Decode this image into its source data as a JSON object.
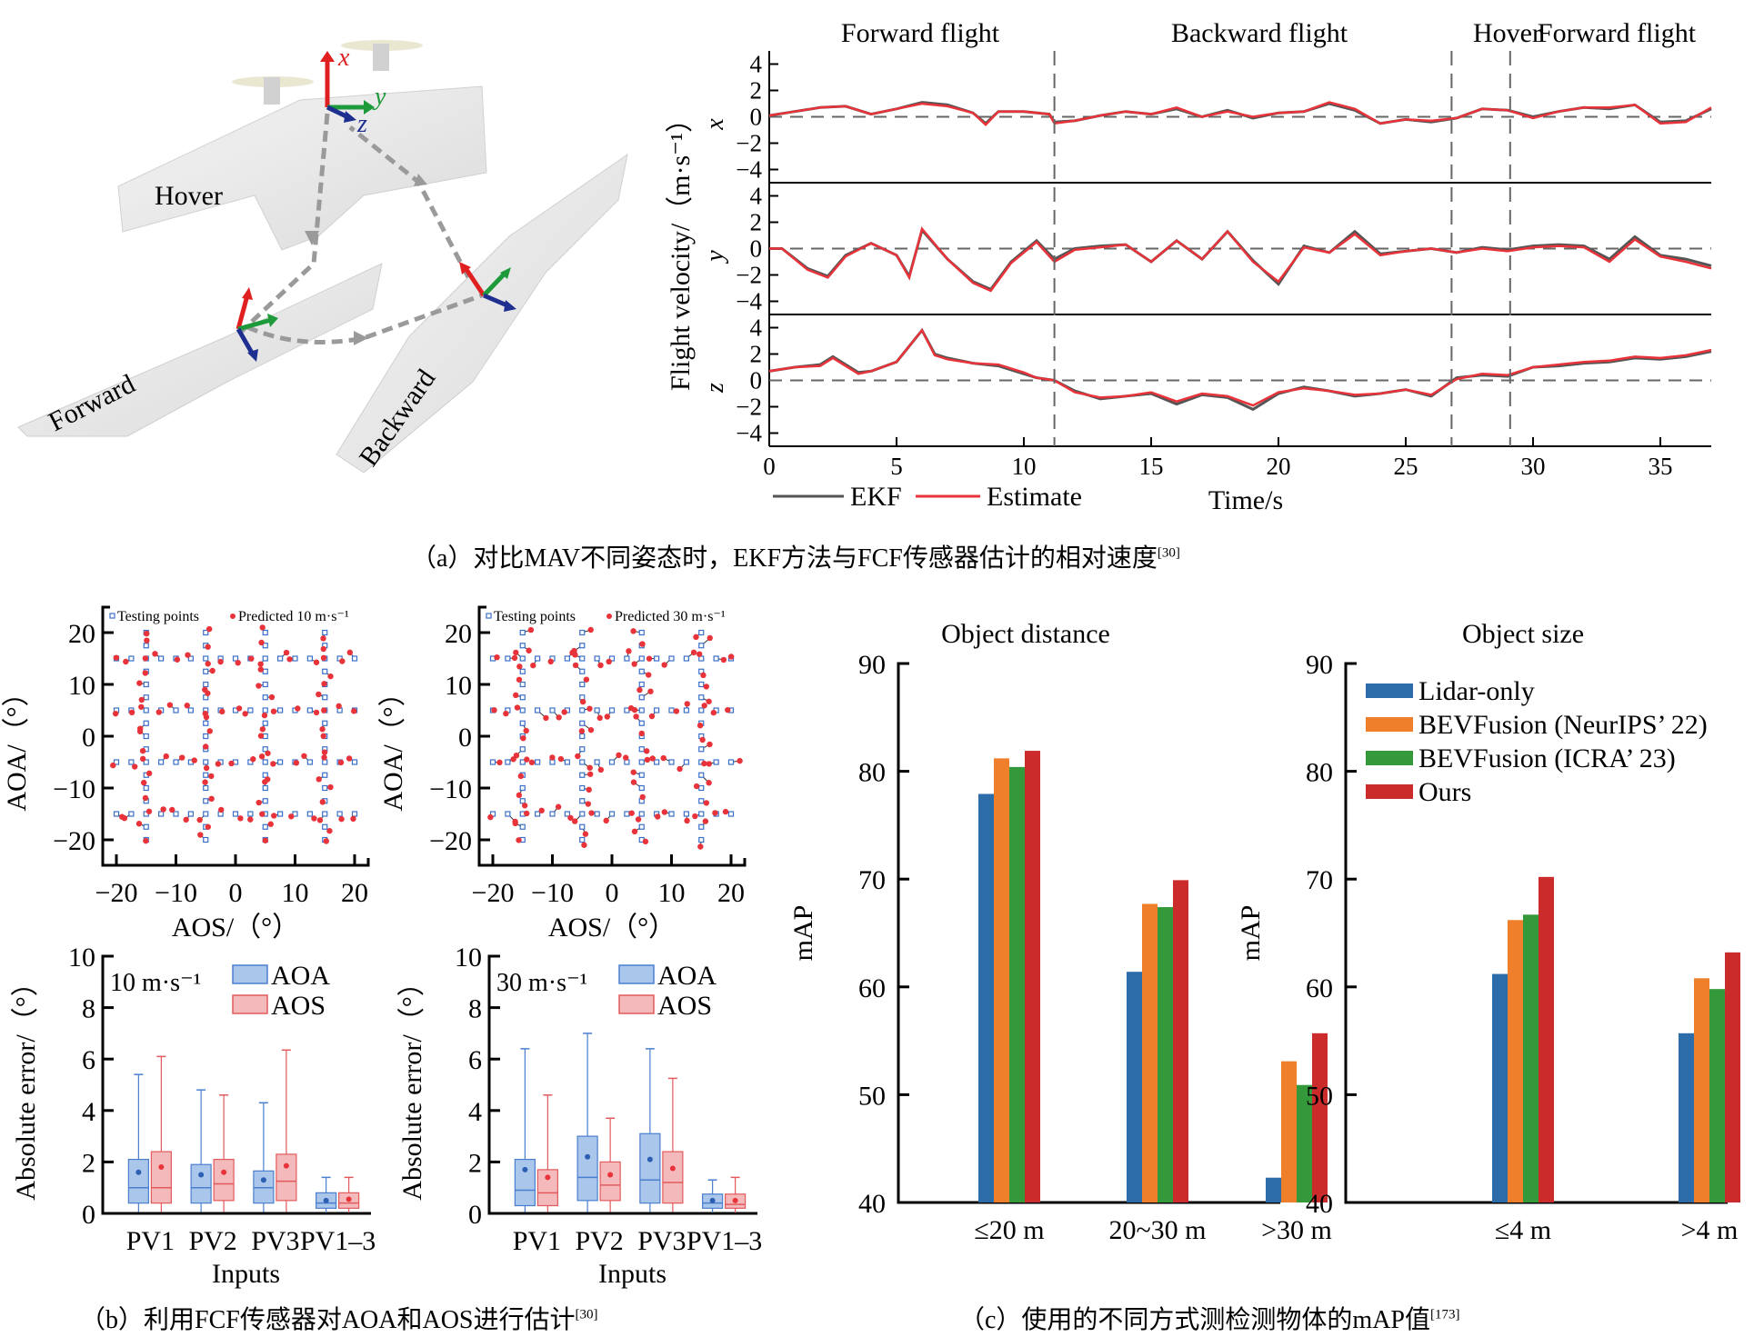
{
  "panel_a": {
    "caption": "（a）对比MAV不同姿态时，EKF方法与FCF传感器估计的相对速度",
    "caption_ref": "[30]",
    "illustration": {
      "labels": [
        "Hover",
        "Forward",
        "Backward"
      ],
      "axis_labels": {
        "x": "x",
        "y": "y",
        "z": "z"
      },
      "axis_colors": {
        "x": "#e02020",
        "y": "#1e9a3a",
        "z": "#1f2f8f"
      }
    }
  },
  "panel_b": {
    "caption": "（b）利用FCF传感器对AOA和AOS进行估计",
    "caption_ref": "[30]"
  },
  "panel_c": {
    "caption": "（c）使用的不同方式测检测物体的mAP值",
    "caption_ref": "[173]"
  },
  "chart_data": [
    {
      "id": "velocity",
      "type": "line",
      "ylabel": "Flight velocity/（m·s⁻¹）",
      "xlabel": "Time/s",
      "xlim": [
        0,
        37
      ],
      "xticks": [
        0,
        5,
        10,
        15,
        20,
        25,
        30,
        35
      ],
      "phases": [
        {
          "label": "Forward flight",
          "start": 0,
          "end": 11.2
        },
        {
          "label": "Backward flight",
          "start": 11.2,
          "end": 26.8
        },
        {
          "label": "Hover",
          "start": 26.8,
          "end": 29.1
        },
        {
          "label": "Forward flight",
          "start": 29.1,
          "end": 37
        }
      ],
      "phase_boundaries": [
        11.2,
        26.8,
        29.1
      ],
      "legend": [
        {
          "name": "EKF",
          "color": "#555555"
        },
        {
          "name": "Estimate",
          "color": "#e8333a"
        }
      ],
      "subplots": [
        {
          "axis": "x",
          "ylim": [
            -5,
            5
          ],
          "yticks": [
            4,
            2,
            0,
            -2,
            -4
          ],
          "t": [
            0,
            1,
            2,
            3,
            4,
            5,
            6,
            7,
            8,
            8.5,
            9,
            10,
            11,
            11.2,
            12,
            13,
            14,
            15,
            16,
            17,
            18,
            19,
            20,
            21,
            22,
            23,
            24,
            25,
            26,
            27,
            28,
            29,
            30,
            31,
            32,
            33,
            34,
            35,
            36,
            37
          ],
          "ekf": [
            0.1,
            0.4,
            0.7,
            0.8,
            0.2,
            0.6,
            1.1,
            0.9,
            0.3,
            -0.5,
            0.4,
            0.4,
            0.2,
            -0.4,
            -0.3,
            0.1,
            0.4,
            0.2,
            0.6,
            0.0,
            0.5,
            -0.1,
            0.3,
            0.4,
            1.0,
            0.5,
            -0.5,
            -0.2,
            -0.4,
            -0.1,
            0.6,
            0.5,
            0.0,
            0.4,
            0.7,
            0.6,
            0.9,
            -0.4,
            -0.3,
            0.6
          ],
          "estimate": [
            0.1,
            0.4,
            0.7,
            0.8,
            0.2,
            0.6,
            1.0,
            0.8,
            0.3,
            -0.6,
            0.4,
            0.4,
            0.2,
            -0.5,
            -0.3,
            0.1,
            0.4,
            0.2,
            0.7,
            0.0,
            0.4,
            0.0,
            0.3,
            0.4,
            1.1,
            0.6,
            -0.5,
            -0.2,
            -0.3,
            -0.1,
            0.6,
            0.5,
            -0.1,
            0.4,
            0.7,
            0.7,
            0.9,
            -0.5,
            -0.4,
            0.7
          ]
        },
        {
          "axis": "y",
          "ylim": [
            -5,
            5
          ],
          "yticks": [
            4,
            2,
            0,
            -2,
            -4
          ],
          "t": [
            0,
            0.5,
            1.5,
            2.3,
            3,
            4,
            5,
            5.5,
            6,
            7,
            8,
            8.7,
            9.5,
            10.5,
            11.2,
            12,
            13,
            14,
            15,
            16,
            17,
            18,
            19,
            20,
            21,
            22,
            23,
            24,
            25,
            26,
            27,
            28,
            29,
            30,
            31,
            32,
            33,
            34,
            35,
            36,
            37
          ],
          "ekf": [
            0,
            0,
            -1.5,
            -2.1,
            -0.5,
            0.4,
            -0.5,
            -2.1,
            1.4,
            -0.8,
            -2.5,
            -3.1,
            -1.0,
            0.6,
            -0.8,
            0.0,
            0.2,
            0.3,
            -1.0,
            0.6,
            -0.8,
            1.3,
            -0.9,
            -2.7,
            0.2,
            -0.3,
            1.3,
            -0.4,
            -0.2,
            0,
            -0.3,
            0.1,
            -0.1,
            0.2,
            0.3,
            0.2,
            -0.8,
            0.9,
            -0.5,
            -0.8,
            -1.3
          ],
          "estimate": [
            0,
            0,
            -1.6,
            -2.2,
            -0.6,
            0.4,
            -0.5,
            -2.2,
            1.5,
            -0.8,
            -2.6,
            -3.2,
            -1.1,
            0.5,
            -1.0,
            -0.1,
            0.1,
            0.3,
            -1.0,
            0.6,
            -0.8,
            1.3,
            -1.0,
            -2.5,
            0.1,
            -0.3,
            1.1,
            -0.5,
            -0.2,
            0,
            -0.3,
            0,
            -0.2,
            0.1,
            0.2,
            0.1,
            -1.0,
            0.7,
            -0.6,
            -1.0,
            -1.5
          ]
        },
        {
          "axis": "z",
          "ylim": [
            -5,
            5
          ],
          "yticks": [
            4,
            2,
            0,
            -2,
            -4
          ],
          "t": [
            0,
            1,
            2,
            2.5,
            3.5,
            4,
            5,
            6,
            6.5,
            7,
            8,
            9,
            10,
            10.5,
            11.2,
            12,
            13,
            14,
            15,
            16,
            17,
            18,
            19,
            20,
            21,
            22,
            23,
            24,
            25,
            26,
            27,
            28,
            29,
            30,
            31,
            32,
            33,
            34,
            35,
            36,
            37
          ],
          "ekf": [
            0.7,
            1.0,
            1.2,
            1.8,
            0.6,
            0.7,
            1.4,
            3.8,
            2.0,
            1.7,
            1.3,
            1.1,
            0.5,
            0.2,
            0.0,
            -0.8,
            -1.4,
            -1.2,
            -1.0,
            -1.8,
            -1.1,
            -1.3,
            -2.2,
            -1.0,
            -0.5,
            -0.8,
            -1.2,
            -1.0,
            -0.7,
            -1.2,
            0.2,
            0.4,
            0.3,
            1.0,
            1.1,
            1.3,
            1.4,
            1.7,
            1.6,
            1.8,
            2.2
          ],
          "estimate": [
            0.7,
            1.0,
            1.1,
            1.7,
            0.5,
            0.7,
            1.4,
            3.8,
            1.9,
            1.6,
            1.3,
            1.2,
            0.6,
            0.2,
            0.0,
            -0.9,
            -1.3,
            -1.2,
            -0.9,
            -1.6,
            -1.0,
            -1.2,
            -1.9,
            -0.9,
            -0.6,
            -0.8,
            -1.1,
            -1.0,
            -0.7,
            -1.1,
            0.1,
            0.5,
            0.4,
            1.0,
            1.2,
            1.4,
            1.5,
            1.8,
            1.7,
            1.9,
            2.3
          ]
        }
      ]
    },
    {
      "id": "aoa_aos_10",
      "type": "scatter",
      "xlabel": "AOS/（°）",
      "ylabel": "AOA/（°）",
      "xlim": [
        -23,
        23
      ],
      "ylim": [
        -21,
        24
      ],
      "xticks": [
        -20,
        -10,
        0,
        10,
        20
      ],
      "yticks": [
        20,
        10,
        0,
        -10,
        -20
      ],
      "legend": [
        {
          "name": "Testing points",
          "color": "#3a6fc9"
        },
        {
          "name": "Predicted 10 m·s⁻¹",
          "color": "#e8333a"
        }
      ],
      "grid_lines_aoa": [
        15,
        5,
        -5,
        -15
      ],
      "grid_lines_aos": [
        -15,
        -5,
        5,
        15
      ],
      "prediction_error_scale": 1.2,
      "seed": 7
    },
    {
      "id": "aoa_aos_30",
      "type": "scatter",
      "xlabel": "AOS/（°）",
      "ylabel": "AOA/（°）",
      "xlim": [
        -23,
        23
      ],
      "ylim": [
        -21,
        24
      ],
      "xticks": [
        -20,
        -10,
        0,
        10,
        20
      ],
      "yticks": [
        20,
        10,
        0,
        -10,
        -20
      ],
      "legend": [
        {
          "name": "Testing points",
          "color": "#3a6fc9"
        },
        {
          "name": "Predicted 30 m·s⁻¹",
          "color": "#e8333a"
        }
      ],
      "grid_lines_aoa": [
        15,
        5,
        -5,
        -15
      ],
      "grid_lines_aos": [
        -15,
        -5,
        5,
        15
      ],
      "prediction_error_scale": 1.5,
      "seed": 13
    },
    {
      "id": "abs_error_10",
      "type": "box",
      "annotation": "10 m·s⁻¹",
      "xlabel": "Inputs",
      "ylabel": "Absolute error/（°）",
      "ylim": [
        0,
        10
      ],
      "yticks": [
        0,
        2,
        4,
        6,
        8,
        10
      ],
      "categories": [
        "PV1",
        "PV2",
        "PV3",
        "PV1–3"
      ],
      "legend": [
        {
          "name": "AOA",
          "fill": "#aac6ea",
          "stroke": "#4a7fcf"
        },
        {
          "name": "AOS",
          "fill": "#f4b9ba",
          "stroke": "#e25a5c"
        }
      ],
      "series": [
        {
          "name": "AOA",
          "boxes": [
            {
              "min": 0.05,
              "q1": 0.4,
              "median": 1.0,
              "q3": 2.1,
              "max": 5.4,
              "mean": 1.6
            },
            {
              "min": 0.05,
              "q1": 0.4,
              "median": 1.0,
              "q3": 1.9,
              "max": 4.8,
              "mean": 1.5
            },
            {
              "min": 0.05,
              "q1": 0.4,
              "median": 1.0,
              "q3": 1.65,
              "max": 4.3,
              "mean": 1.3
            },
            {
              "min": 0.02,
              "q1": 0.2,
              "median": 0.4,
              "q3": 0.8,
              "max": 1.4,
              "mean": 0.5
            }
          ]
        },
        {
          "name": "AOS",
          "boxes": [
            {
              "min": 0.05,
              "q1": 0.4,
              "median": 1.0,
              "q3": 2.4,
              "max": 6.1,
              "mean": 1.8
            },
            {
              "min": 0.05,
              "q1": 0.5,
              "median": 1.15,
              "q3": 2.1,
              "max": 4.6,
              "mean": 1.6
            },
            {
              "min": 0.05,
              "q1": 0.5,
              "median": 1.25,
              "q3": 2.3,
              "max": 6.35,
              "mean": 1.85
            },
            {
              "min": 0.02,
              "q1": 0.2,
              "median": 0.4,
              "q3": 0.8,
              "max": 1.4,
              "mean": 0.55
            }
          ]
        }
      ]
    },
    {
      "id": "abs_error_30",
      "type": "box",
      "annotation": "30 m·s⁻¹",
      "xlabel": "Inputs",
      "ylabel": "Absolute error/（°）",
      "ylim": [
        0,
        10
      ],
      "yticks": [
        0,
        2,
        4,
        6,
        8,
        10
      ],
      "categories": [
        "PV1",
        "PV2",
        "PV3",
        "PV1–3"
      ],
      "legend": [
        {
          "name": "AOA",
          "fill": "#aac6ea",
          "stroke": "#4a7fcf"
        },
        {
          "name": "AOS",
          "fill": "#f4b9ba",
          "stroke": "#e25a5c"
        }
      ],
      "series": [
        {
          "name": "AOA",
          "boxes": [
            {
              "min": 0.05,
              "q1": 0.3,
              "median": 0.9,
              "q3": 2.1,
              "max": 6.4,
              "mean": 1.7
            },
            {
              "min": 0.05,
              "q1": 0.5,
              "median": 1.4,
              "q3": 3.0,
              "max": 7.0,
              "mean": 2.2
            },
            {
              "min": 0.05,
              "q1": 0.4,
              "median": 1.3,
              "q3": 3.1,
              "max": 6.4,
              "mean": 2.1
            },
            {
              "min": 0.02,
              "q1": 0.2,
              "median": 0.4,
              "q3": 0.75,
              "max": 1.3,
              "mean": 0.5
            }
          ]
        },
        {
          "name": "AOS",
          "boxes": [
            {
              "min": 0.05,
              "q1": 0.3,
              "median": 0.8,
              "q3": 1.7,
              "max": 4.6,
              "mean": 1.4
            },
            {
              "min": 0.05,
              "q1": 0.5,
              "median": 1.1,
              "q3": 2.0,
              "max": 3.7,
              "mean": 1.5
            },
            {
              "min": 0.05,
              "q1": 0.4,
              "median": 1.2,
              "q3": 2.4,
              "max": 5.25,
              "mean": 1.75
            },
            {
              "min": 0.02,
              "q1": 0.2,
              "median": 0.35,
              "q3": 0.75,
              "max": 1.4,
              "mean": 0.5
            }
          ]
        }
      ]
    },
    {
      "id": "map_distance",
      "type": "bar",
      "title": "Object distance",
      "xlabel": "",
      "ylabel": "mAP",
      "ylim": [
        40,
        90
      ],
      "yticks": [
        40,
        50,
        60,
        70,
        80,
        90
      ],
      "categories": [
        "≤20 m",
        "20~30 m",
        ">30 m"
      ],
      "series": [
        {
          "name": "Lidar-only",
          "color": "#2c6ca8",
          "values": [
            77.9,
            61.4,
            42.3
          ]
        },
        {
          "name": "BEVFusion (NeurIPS’ 22)",
          "color": "#ef7f2b",
          "values": [
            81.2,
            67.7,
            53.1
          ]
        },
        {
          "name": "BEVFusion (ICRA’ 23)",
          "color": "#33993a",
          "values": [
            80.4,
            67.4,
            50.9
          ]
        },
        {
          "name": "Ours",
          "color": "#cc2b2b",
          "values": [
            81.9,
            69.9,
            55.7
          ]
        }
      ]
    },
    {
      "id": "map_size",
      "type": "bar",
      "title": "Object size",
      "xlabel": "",
      "ylabel": "mAP",
      "ylim": [
        40,
        90
      ],
      "yticks": [
        40,
        50,
        60,
        70,
        80,
        90
      ],
      "categories": [
        "≤4 m",
        ">4 m"
      ],
      "legend_position": "top-left",
      "series": [
        {
          "name": "Lidar-only",
          "color": "#2c6ca8",
          "values": [
            61.2,
            55.7
          ]
        },
        {
          "name": "BEVFusion (NeurIPS’ 22)",
          "color": "#ef7f2b",
          "values": [
            66.2,
            60.8
          ]
        },
        {
          "name": "BEVFusion (ICRA’ 23)",
          "color": "#33993a",
          "values": [
            66.7,
            59.8
          ]
        },
        {
          "name": "Ours",
          "color": "#cc2b2b",
          "values": [
            70.2,
            63.2
          ]
        }
      ]
    }
  ]
}
